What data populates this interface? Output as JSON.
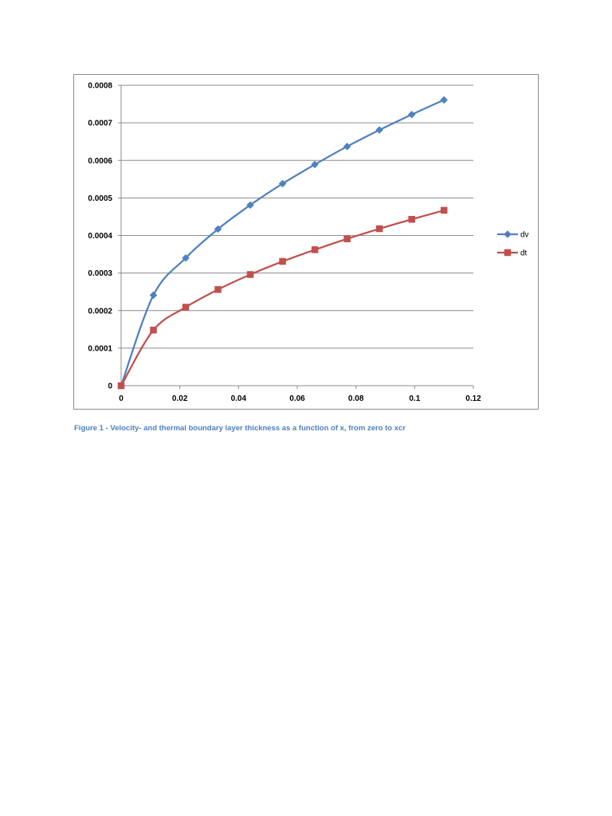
{
  "caption": "Figure 1 - Velocity- and thermal boundary layer thickness as a function of x, from zero to xcr",
  "chart_data": {
    "type": "line",
    "smooth": true,
    "title": "",
    "xlabel": "",
    "ylabel": "",
    "xlim": [
      0,
      0.12
    ],
    "ylim": [
      0,
      0.0008
    ],
    "x_ticks": [
      "0",
      "0.02",
      "0.04",
      "0.06",
      "0.08",
      "0.1",
      "0.12"
    ],
    "x_tick_values": [
      0,
      0.02,
      0.04,
      0.06,
      0.08,
      0.1,
      0.12
    ],
    "y_ticks": [
      "0",
      "0.0001",
      "0.0002",
      "0.0003",
      "0.0004",
      "0.0005",
      "0.0006",
      "0.0007",
      "0.0008"
    ],
    "y_tick_values": [
      0,
      0.0001,
      0.0002,
      0.0003,
      0.0004,
      0.0005,
      0.0006,
      0.0007,
      0.0008
    ],
    "grid": {
      "horizontal": true,
      "vertical": false
    },
    "legend_position": "right",
    "x": [
      0,
      0.011,
      0.022,
      0.033,
      0.044,
      0.055,
      0.066,
      0.077,
      0.088,
      0.099,
      0.11
    ],
    "series": [
      {
        "name": "dv",
        "color": "#4f81bd",
        "marker": "diamond",
        "values": [
          0,
          0.000241,
          0.00034,
          0.000417,
          0.000481,
          0.000538,
          0.000589,
          0.000637,
          0.000681,
          0.000722,
          0.000761
        ]
      },
      {
        "name": "dt",
        "color": "#c0504d",
        "marker": "square",
        "values": [
          0,
          0.000148,
          0.000209,
          0.000256,
          0.000296,
          0.000331,
          0.000362,
          0.000391,
          0.000418,
          0.000443,
          0.000467
        ]
      }
    ]
  }
}
